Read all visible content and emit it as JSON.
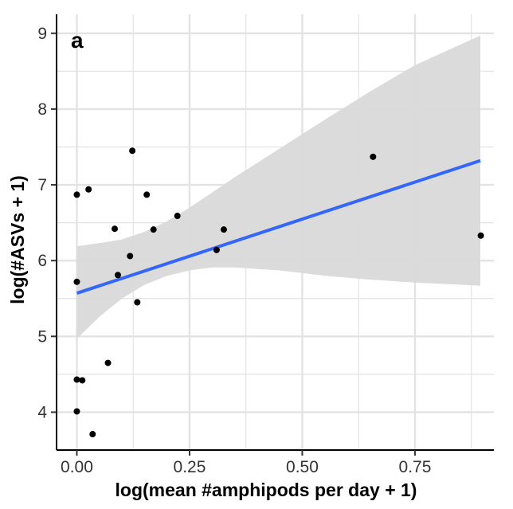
{
  "chart_data": {
    "type": "scatter",
    "panel_label": "a",
    "xlabel": "log(mean #amphipods per day + 1)",
    "ylabel": "log(#ASVs + 1)",
    "xlim": [
      -0.045,
      0.925
    ],
    "ylim": [
      3.5,
      9.25
    ],
    "x_ticks": [
      0.0,
      0.25,
      0.5,
      0.75
    ],
    "x_tick_labels": [
      "0.00",
      "0.25",
      "0.50",
      "0.75"
    ],
    "y_ticks": [
      4,
      5,
      6,
      7,
      8,
      9
    ],
    "y_tick_labels": [
      "4",
      "5",
      "6",
      "7",
      "8",
      "9"
    ],
    "grid": true,
    "points": [
      {
        "x": 0.0,
        "y": 6.87
      },
      {
        "x": 0.0,
        "y": 5.72
      },
      {
        "x": 0.0,
        "y": 4.43
      },
      {
        "x": 0.0,
        "y": 4.01
      },
      {
        "x": 0.012,
        "y": 4.42
      },
      {
        "x": 0.026,
        "y": 6.94
      },
      {
        "x": 0.035,
        "y": 3.71
      },
      {
        "x": 0.069,
        "y": 4.65
      },
      {
        "x": 0.084,
        "y": 6.42
      },
      {
        "x": 0.091,
        "y": 5.81
      },
      {
        "x": 0.118,
        "y": 6.06
      },
      {
        "x": 0.123,
        "y": 7.45
      },
      {
        "x": 0.134,
        "y": 5.45
      },
      {
        "x": 0.155,
        "y": 6.87
      },
      {
        "x": 0.17,
        "y": 6.41
      },
      {
        "x": 0.223,
        "y": 6.59
      },
      {
        "x": 0.31,
        "y": 6.14
      },
      {
        "x": 0.326,
        "y": 6.41
      },
      {
        "x": 0.657,
        "y": 7.37
      },
      {
        "x": 0.896,
        "y": 6.33
      }
    ],
    "fit": {
      "x": [
        0.0,
        0.895
      ],
      "y": [
        5.57,
        7.32
      ]
    },
    "confidence_band": [
      {
        "x": 0.0,
        "lo": 4.97,
        "hi": 6.19
      },
      {
        "x": 0.05,
        "lo": 5.26,
        "hi": 6.23
      },
      {
        "x": 0.1,
        "lo": 5.5,
        "hi": 6.28
      },
      {
        "x": 0.15,
        "lo": 5.68,
        "hi": 6.38
      },
      {
        "x": 0.2,
        "lo": 5.8,
        "hi": 6.52
      },
      {
        "x": 0.25,
        "lo": 5.87,
        "hi": 6.7
      },
      {
        "x": 0.3,
        "lo": 5.91,
        "hi": 6.9
      },
      {
        "x": 0.35,
        "lo": 5.91,
        "hi": 7.1
      },
      {
        "x": 0.45,
        "lo": 5.87,
        "hi": 7.48
      },
      {
        "x": 0.55,
        "lo": 5.8,
        "hi": 7.86
      },
      {
        "x": 0.65,
        "lo": 5.75,
        "hi": 8.23
      },
      {
        "x": 0.75,
        "lo": 5.71,
        "hi": 8.58
      },
      {
        "x": 0.895,
        "lo": 5.67,
        "hi": 8.97
      }
    ],
    "colors": {
      "points": "#000000",
      "fit_line": "#3366FF",
      "band": "#D9D9D9",
      "grid": "#E3E3E3",
      "axis": "#000000"
    }
  }
}
